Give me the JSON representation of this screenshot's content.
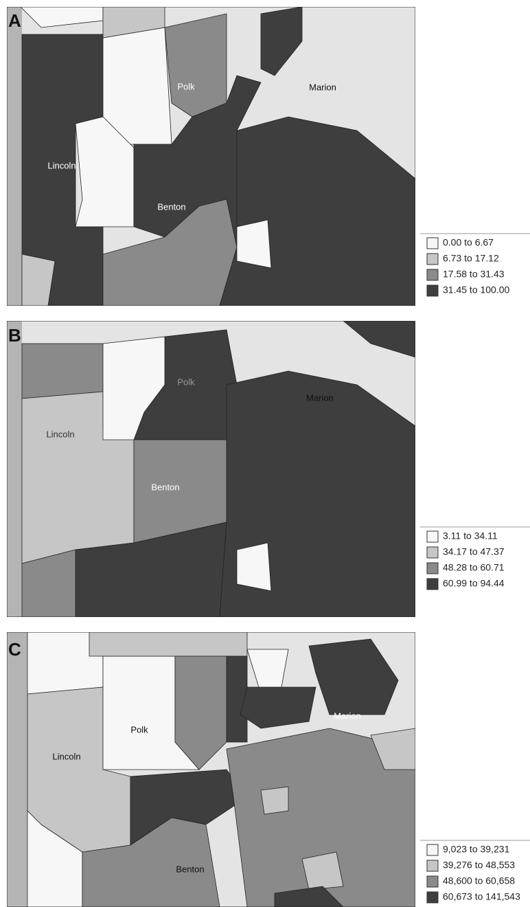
{
  "panels": [
    {
      "letter": "A",
      "labels": [
        "Polk",
        "Marion",
        "Lincoln",
        "Benton"
      ],
      "legend": [
        "0.00 to 6.67",
        "6.73 to 17.12",
        "17.58 to 31.43",
        "31.45 to 100.00"
      ]
    },
    {
      "letter": "B",
      "labels": [
        "Polk",
        "Marion",
        "Lincoln",
        "Benton"
      ],
      "legend": [
        "3.11 to 34.11",
        "34.17 to 47.37",
        "48.28 to 60.71",
        "60.99 to 94.44"
      ]
    },
    {
      "letter": "C",
      "labels": [
        "Polk",
        "Marion",
        "Lincoln",
        "Benton"
      ],
      "legend": [
        "9,023 to 39,231",
        "39,276 to 48,553",
        "48,600 to 60,658",
        "60,673 to 141,543"
      ]
    }
  ]
}
